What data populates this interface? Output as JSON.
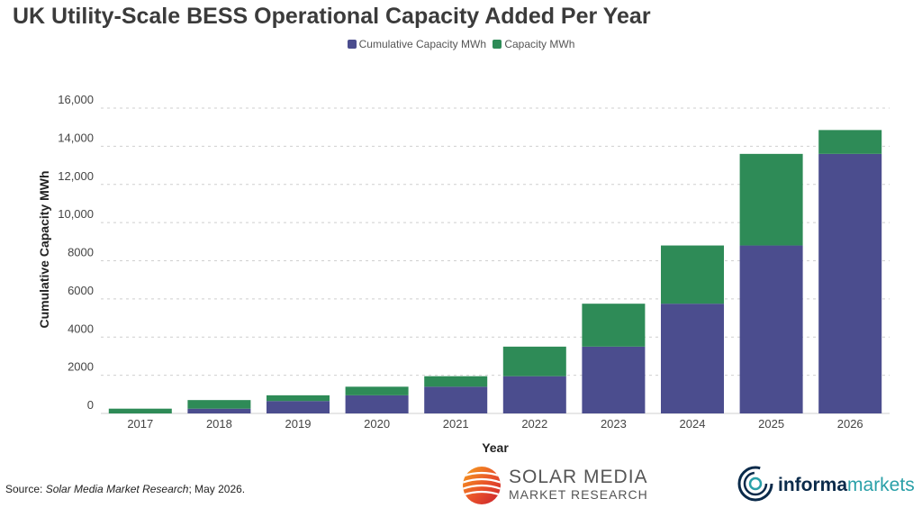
{
  "chart_data": {
    "type": "bar",
    "stacked": true,
    "title": "UK Utility-Scale BESS Operational Capacity Added Per Year",
    "xlabel": "Year",
    "ylabel": "Cumulative Capacity MWh",
    "ylim": [
      0,
      16000
    ],
    "y_ticks": [
      0,
      2000,
      4000,
      6000,
      8000,
      10000,
      12000,
      14000,
      16000
    ],
    "y_tick_labels": [
      "0",
      "2000",
      "4000",
      "6000",
      "8000",
      "10,000",
      "12,000",
      "14,000",
      "16,000"
    ],
    "grid": true,
    "legend_position": "top-center",
    "categories": [
      "2017",
      "2018",
      "2019",
      "2020",
      "2021",
      "2022",
      "2023",
      "2024",
      "2025",
      "2026"
    ],
    "series": [
      {
        "name": "Cumulative Capacity MWh",
        "color": "#4b4d8e",
        "values": [
          0,
          250,
          650,
          950,
          1400,
          1950,
          3500,
          5750,
          8800,
          13600
        ]
      },
      {
        "name": "Capacity MWh",
        "color": "#2e8b57",
        "values": [
          250,
          450,
          300,
          450,
          550,
          1550,
          2250,
          3050,
          4800,
          1250
        ]
      }
    ]
  },
  "footer": {
    "source_label": "Source: ",
    "source_name": "Solar Media Market Research",
    "source_date": "; May 2026."
  },
  "logos": {
    "solar_media_line1": "SOLAR MEDIA",
    "solar_media_line2": "MARKET RESEARCH",
    "informa_part1": "informa",
    "informa_part2": "markets"
  }
}
